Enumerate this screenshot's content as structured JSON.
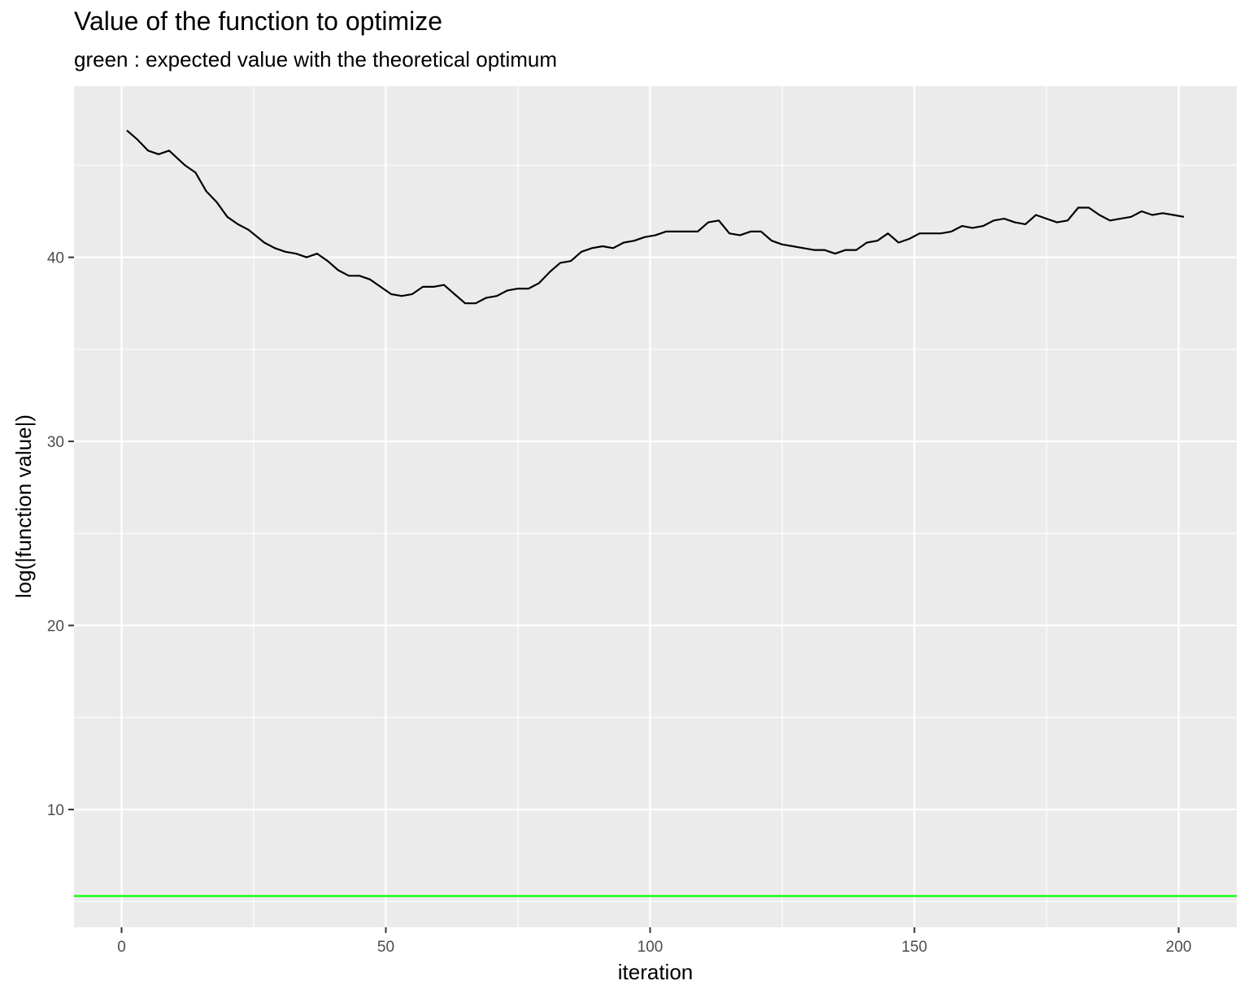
{
  "chart_data": {
    "type": "line",
    "title": "Value of the function to optimize",
    "subtitle": "green : expected value with the theoretical optimum",
    "xlabel": "iteration",
    "ylabel": "log(|function value|)",
    "xlim": [
      -9,
      211
    ],
    "ylim": [
      3.6,
      49.3
    ],
    "x_ticks": [
      0,
      50,
      100,
      150,
      200
    ],
    "y_ticks": [
      10,
      20,
      30,
      40
    ],
    "grid": true,
    "legend": "none",
    "series": [
      {
        "color": "#000000",
        "x": [
          1,
          3,
          5,
          7,
          9,
          12,
          14,
          16,
          18,
          20,
          22,
          24,
          27,
          29,
          31,
          33,
          35,
          37,
          39,
          41,
          43,
          45,
          47,
          49,
          51,
          53,
          55,
          57,
          59,
          61,
          63,
          65,
          67,
          69,
          71,
          73,
          75,
          77,
          79,
          81,
          83,
          85,
          87,
          89,
          91,
          93,
          95,
          97,
          99,
          101,
          103,
          105,
          107,
          109,
          111,
          113,
          115,
          117,
          119,
          121,
          123,
          125,
          127,
          129,
          131,
          133,
          135,
          137,
          139,
          141,
          143,
          145,
          147,
          149,
          151,
          153,
          155,
          157,
          159,
          161,
          163,
          165,
          167,
          169,
          171,
          173,
          175,
          177,
          179,
          181,
          183,
          185,
          187,
          189,
          191,
          193,
          195,
          197,
          199,
          201
        ],
        "y": [
          46.9,
          46.4,
          45.8,
          45.6,
          45.8,
          45.0,
          44.6,
          43.6,
          43.0,
          42.2,
          41.8,
          41.5,
          40.8,
          40.5,
          40.3,
          40.2,
          40.0,
          40.2,
          39.8,
          39.3,
          39.0,
          39.0,
          38.8,
          38.4,
          38.0,
          37.9,
          38.0,
          38.4,
          38.4,
          38.5,
          38.0,
          37.5,
          37.5,
          37.8,
          37.9,
          38.2,
          38.3,
          38.3,
          38.6,
          39.2,
          39.7,
          39.8,
          40.3,
          40.5,
          40.6,
          40.5,
          40.8,
          40.9,
          41.1,
          41.2,
          41.4,
          41.4,
          41.4,
          41.4,
          41.9,
          42.0,
          41.3,
          41.2,
          41.4,
          41.4,
          40.9,
          40.7,
          40.6,
          40.5,
          40.4,
          40.4,
          40.2,
          40.4,
          40.4,
          40.8,
          40.9,
          41.3,
          40.8,
          41.0,
          41.3,
          41.3,
          41.3,
          41.4,
          41.7,
          41.6,
          41.7,
          42.0,
          42.1,
          41.9,
          41.8,
          42.3,
          42.1,
          41.9,
          42.0,
          42.7,
          42.7,
          42.3,
          42.0,
          42.1,
          42.2,
          42.5,
          42.3,
          42.4,
          42.3,
          42.2
        ]
      },
      {
        "color": "#00ff00",
        "x": [
          -9,
          211
        ],
        "y": [
          5.3,
          5.3
        ]
      }
    ]
  }
}
